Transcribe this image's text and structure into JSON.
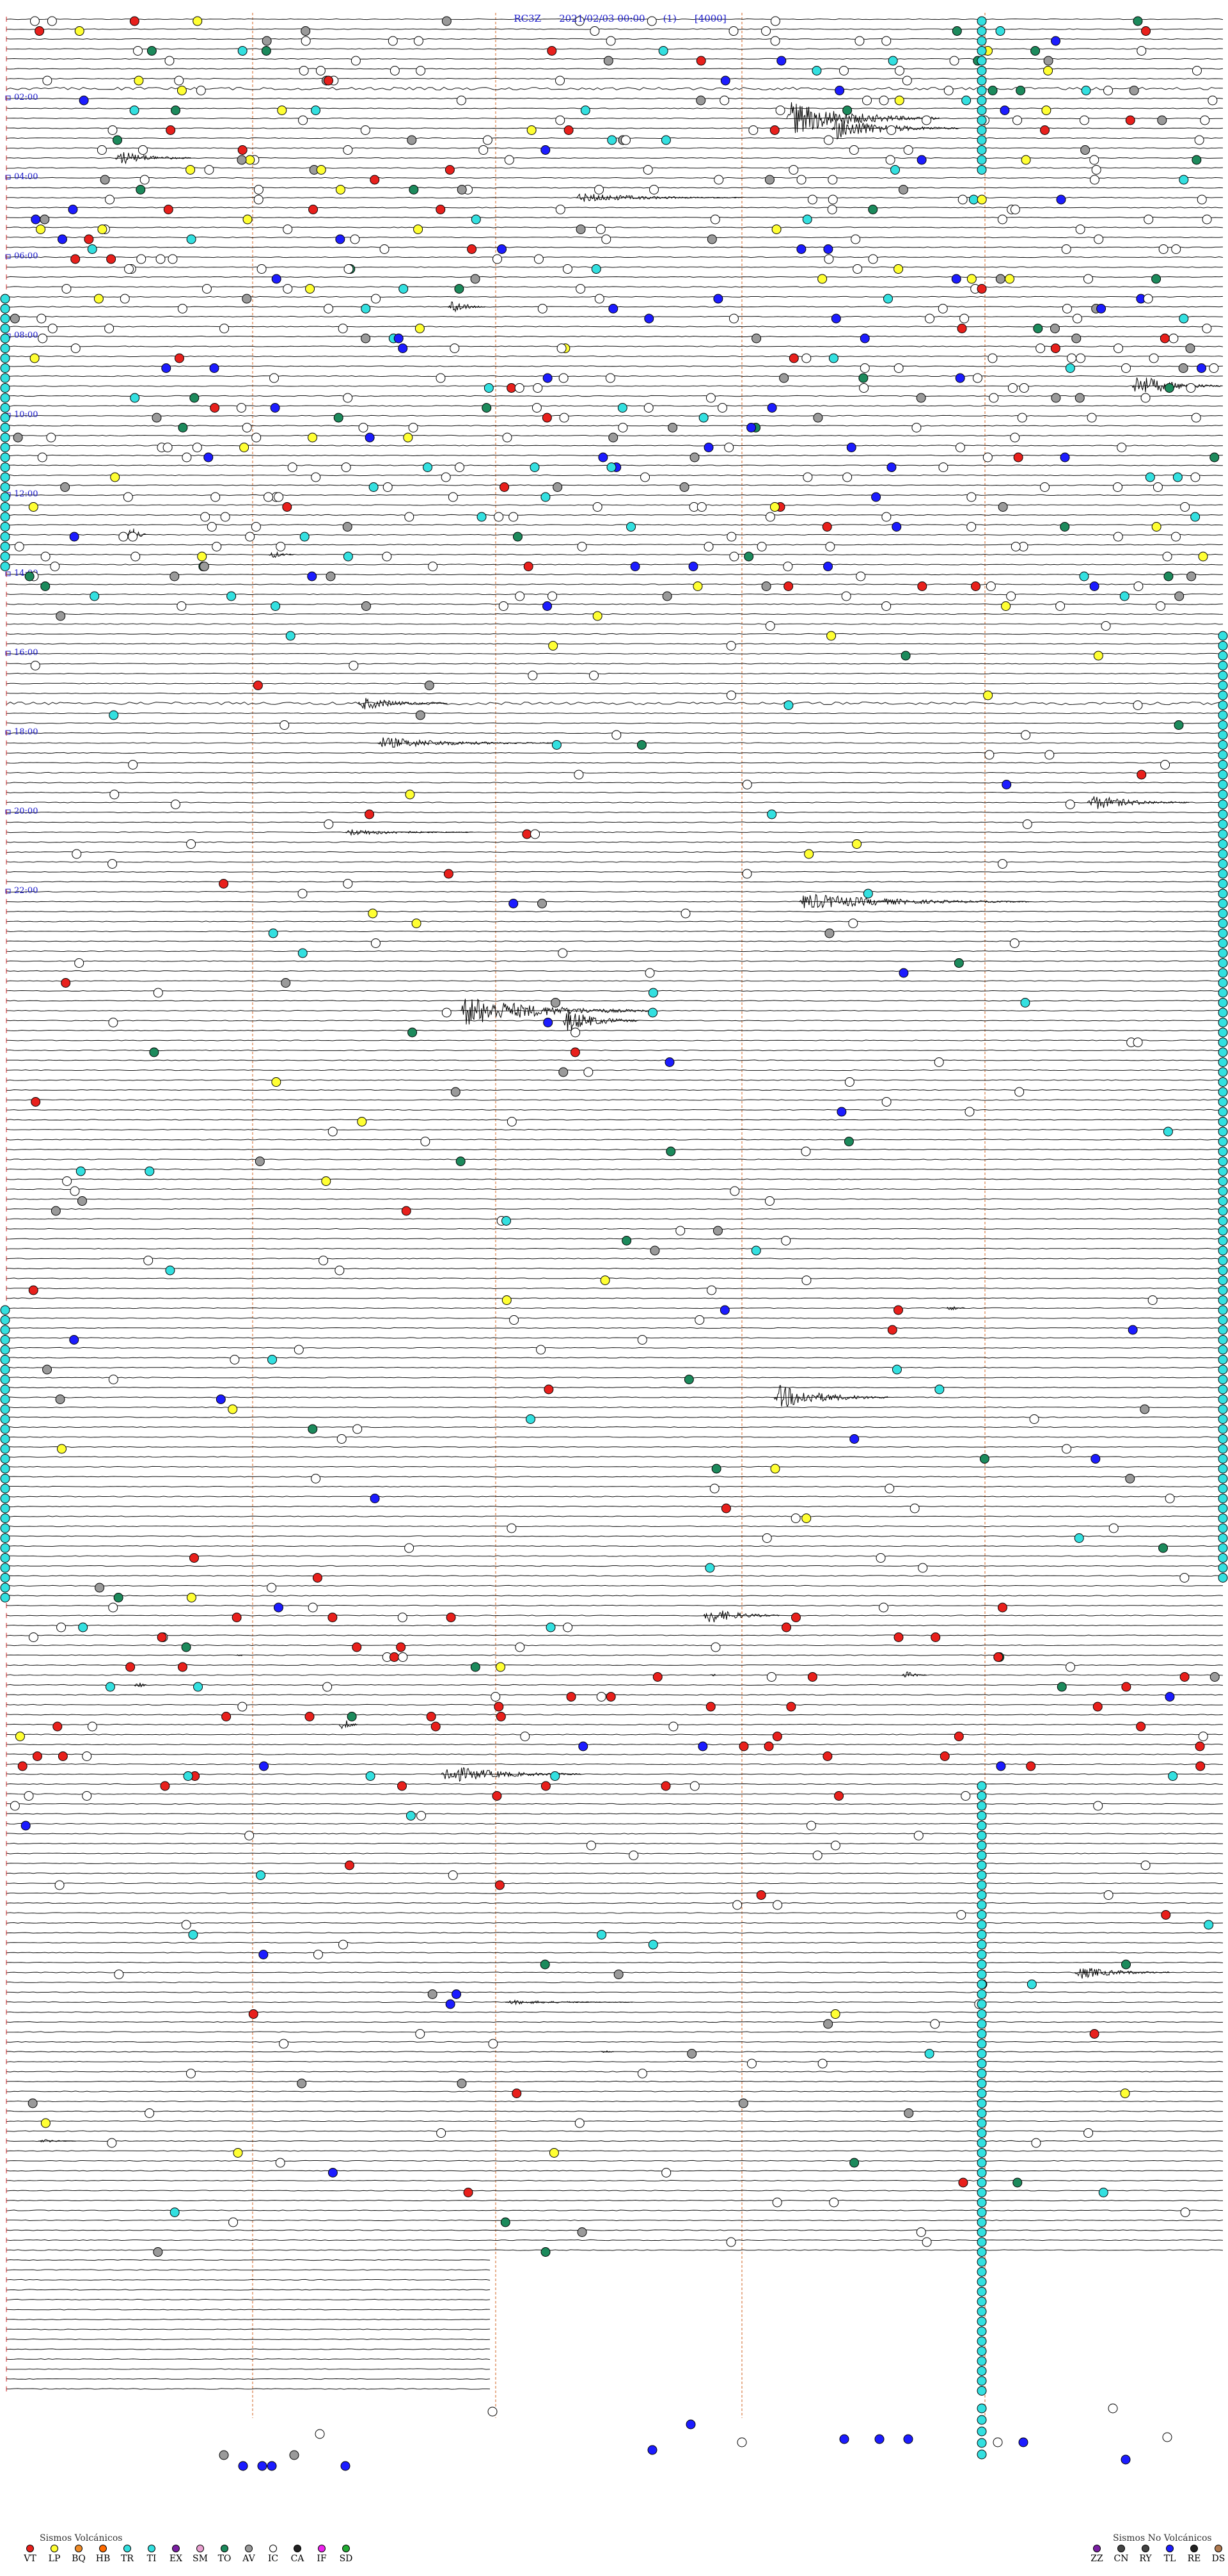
{
  "header": {
    "station": "RC3Z",
    "datetime": "2021/02/03 00:00",
    "component": "(1)",
    "scale": "[4000]"
  },
  "time_labels": [
    "02:00",
    "04:00",
    "06:00",
    "08:00",
    "10:00",
    "12:00",
    "14:00",
    "16:00",
    "18:00",
    "20:00",
    "22:00"
  ],
  "legend_volcanic": {
    "title": "Sismos Volcánicos",
    "items": [
      {
        "code": "VT",
        "color": "#e8201c"
      },
      {
        "code": "LP",
        "color": "#ffff33"
      },
      {
        "code": "BQ",
        "color": "#f08c28"
      },
      {
        "code": "HB",
        "color": "#ff6a00"
      },
      {
        "code": "TR",
        "color": "#33e0e0"
      },
      {
        "code": "TI",
        "color": "#33e0e0"
      },
      {
        "code": "EX",
        "color": "#7a1fa3"
      },
      {
        "code": "SM",
        "color": "#e9a0d0"
      },
      {
        "code": "TO",
        "color": "#1c8a5c"
      },
      {
        "code": "AV",
        "color": "#9a9a9a"
      },
      {
        "code": "IC",
        "color": "#ffffff"
      },
      {
        "code": "CA",
        "color": "#222222"
      },
      {
        "code": "IF",
        "color": "#ee22ee"
      },
      {
        "code": "SD",
        "color": "#22aa33"
      }
    ]
  },
  "legend_non_volcanic": {
    "title": "Sismos No Volcánicos",
    "items": [
      {
        "code": "ZZ",
        "color": "#7a1fa3"
      },
      {
        "code": "CN",
        "color": "#444444"
      },
      {
        "code": "RY",
        "color": "#444444"
      },
      {
        "code": "TL",
        "color": "#1c1cff"
      },
      {
        "code": "RE",
        "color": "#222222"
      },
      {
        "code": "DS",
        "color": "#b07a50"
      }
    ]
  },
  "colors": {
    "trace": "#111111",
    "time_label": "#1a1acc",
    "guide_line": "#e0966a",
    "hour_marker": "#cc2222",
    "event_white": "#ffffff",
    "event_cyan": "#33e0e0",
    "event_yellow": "#ffff33",
    "event_red": "#e8201c",
    "event_blue": "#1c1cff",
    "event_green": "#1c8a5c",
    "event_gray": "#9a9a9a"
  }
}
